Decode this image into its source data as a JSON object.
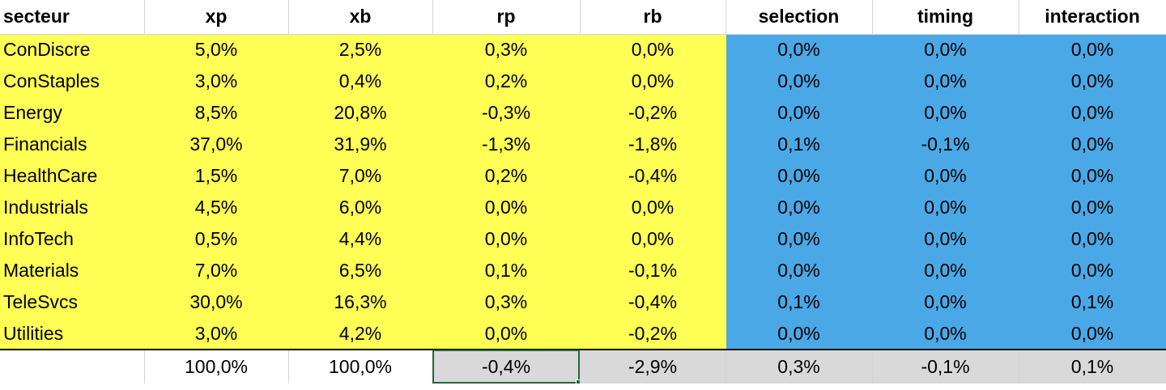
{
  "sheet": {
    "headers": [
      "secteur",
      "xp",
      "xb",
      "rp",
      "rb",
      "selection",
      "timing",
      "interaction"
    ],
    "rows": [
      {
        "secteur": "ConDiscre",
        "xp": "5,0%",
        "xb": "2,5%",
        "rp": "0,3%",
        "rb": "0,0%",
        "selection": "0,0%",
        "timing": "0,0%",
        "interaction": "0,0%"
      },
      {
        "secteur": "ConStaples",
        "xp": "3,0%",
        "xb": "0,4%",
        "rp": "0,2%",
        "rb": "0,0%",
        "selection": "0,0%",
        "timing": "0,0%",
        "interaction": "0,0%"
      },
      {
        "secteur": "Energy",
        "xp": "8,5%",
        "xb": "20,8%",
        "rp": "-0,3%",
        "rb": "-0,2%",
        "selection": "0,0%",
        "timing": "0,0%",
        "interaction": "0,0%"
      },
      {
        "secteur": "Financials",
        "xp": "37,0%",
        "xb": "31,9%",
        "rp": "-1,3%",
        "rb": "-1,8%",
        "selection": "0,1%",
        "timing": "-0,1%",
        "interaction": "0,0%"
      },
      {
        "secteur": "HealthCare",
        "xp": "1,5%",
        "xb": "7,0%",
        "rp": "0,2%",
        "rb": "-0,4%",
        "selection": "0,0%",
        "timing": "0,0%",
        "interaction": "0,0%"
      },
      {
        "secteur": "Industrials",
        "xp": "4,5%",
        "xb": "6,0%",
        "rp": "0,0%",
        "rb": "0,0%",
        "selection": "0,0%",
        "timing": "0,0%",
        "interaction": "0,0%"
      },
      {
        "secteur": "InfoTech",
        "xp": "0,5%",
        "xb": "4,4%",
        "rp": "0,0%",
        "rb": "0,0%",
        "selection": "0,0%",
        "timing": "0,0%",
        "interaction": "0,0%"
      },
      {
        "secteur": "Materials",
        "xp": "7,0%",
        "xb": "6,5%",
        "rp": "0,1%",
        "rb": "-0,1%",
        "selection": "0,0%",
        "timing": "0,0%",
        "interaction": "0,0%"
      },
      {
        "secteur": "TeleSvcs",
        "xp": "30,0%",
        "xb": "16,3%",
        "rp": "0,3%",
        "rb": "-0,4%",
        "selection": "0,1%",
        "timing": "0,0%",
        "interaction": "0,1%"
      },
      {
        "secteur": "Utilities",
        "xp": "3,0%",
        "xb": "4,2%",
        "rp": "0,0%",
        "rb": "-0,2%",
        "selection": "0,0%",
        "timing": "0,0%",
        "interaction": "0,0%"
      }
    ],
    "totals": {
      "secteur": "",
      "xp": "100,0%",
      "xb": "100,0%",
      "rp": "-0,4%",
      "rb": "-2,9%",
      "selection": "0,3%",
      "timing": "-0,1%",
      "interaction": "0,1%"
    },
    "selected_cell": "rp-total"
  },
  "colors": {
    "input_fill": "#ffff55",
    "output_fill": "#4aa8e6",
    "total_fill": "#d9d9d9",
    "selection_border": "#1f6b3a"
  }
}
